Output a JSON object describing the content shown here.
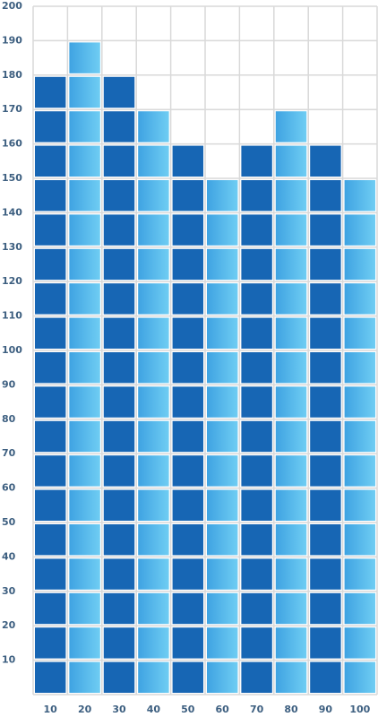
{
  "chart_data": {
    "type": "bar",
    "categories": [
      "10",
      "20",
      "30",
      "40",
      "50",
      "60",
      "70",
      "80",
      "90",
      "100"
    ],
    "values": [
      180,
      190,
      180,
      170,
      160,
      150,
      160,
      170,
      160,
      150
    ],
    "colors": [
      "#1766b4",
      "#47aee8"
    ],
    "ylim": [
      0,
      200
    ],
    "yticks": [
      10,
      20,
      30,
      40,
      50,
      60,
      70,
      80,
      90,
      100,
      110,
      120,
      130,
      140,
      150,
      160,
      170,
      180,
      190,
      200
    ],
    "grid": true
  }
}
